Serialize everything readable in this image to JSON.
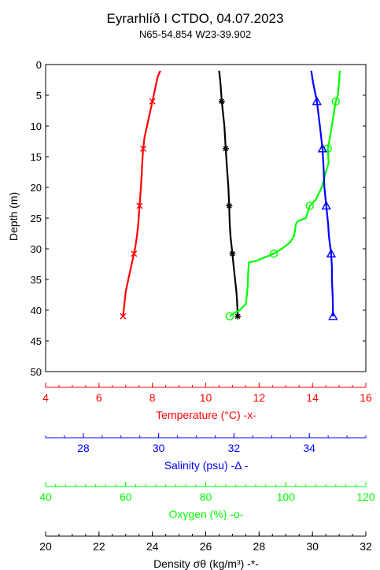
{
  "chart_data": {
    "type": "line",
    "title": "Eyrarhlíð I CTDO, 04.07.2023",
    "subtitle": "N65-54.854   W23-39.902",
    "ylabel": "Depth (m)",
    "ylim": [
      0,
      50
    ],
    "y_ticks": [
      "0",
      "5",
      "10",
      "15",
      "20",
      "25",
      "30",
      "35",
      "40",
      "45",
      "50"
    ],
    "grid": false,
    "axes": [
      {
        "key": "temperature",
        "label": "Temperature (°C)   -x-",
        "color": "#ff0000",
        "range": [
          4,
          16
        ],
        "ticks": [
          4,
          6,
          8,
          10,
          12,
          14,
          16
        ],
        "tick_labels": [
          "4",
          "6",
          "8",
          "10",
          "12",
          "14",
          "16"
        ],
        "minor_step": 0.5
      },
      {
        "key": "salinity",
        "label": "Salinity (psu)   -Δ -",
        "color": "#0000ff",
        "range": [
          27,
          35.5
        ],
        "ticks": [
          28,
          30,
          32,
          34
        ],
        "tick_labels": [
          "28",
          "30",
          "32",
          "34"
        ],
        "minor_step": 0.5
      },
      {
        "key": "oxygen",
        "label": "Oxygen (%)   -o-",
        "color": "#00ff00",
        "range": [
          40,
          120
        ],
        "ticks": [
          40,
          60,
          80,
          100,
          120
        ],
        "tick_labels": [
          "40",
          "60",
          "80",
          "100",
          "120"
        ],
        "minor_step": 2.5
      },
      {
        "key": "density",
        "label": "Density σθ (kg/m³)   -*-",
        "color": "#000000",
        "range": [
          20,
          32
        ],
        "ticks": [
          20,
          22,
          24,
          26,
          28,
          30,
          32
        ],
        "tick_labels": [
          "20",
          "22",
          "24",
          "26",
          "28",
          "30",
          "32"
        ],
        "minor_step": 0.5
      }
    ],
    "series": [
      {
        "name": "Temperature",
        "axis": "temperature",
        "color": "#ff0000",
        "marker": "x",
        "depth": [
          1,
          2,
          4,
          6,
          8,
          10,
          12,
          14,
          16,
          18,
          20,
          23,
          26,
          28,
          30,
          31,
          33,
          35,
          37,
          39,
          41
        ],
        "values": [
          8.3,
          8.2,
          8.1,
          8.0,
          7.9,
          7.8,
          7.7,
          7.65,
          7.62,
          7.6,
          7.57,
          7.52,
          7.47,
          7.42,
          7.35,
          7.3,
          7.2,
          7.1,
          7.0,
          6.95,
          6.9
        ],
        "markers_at": [
          6,
          13.7,
          23,
          30.8,
          41
        ]
      },
      {
        "name": "Density",
        "axis": "density",
        "color": "#000000",
        "marker": "*",
        "depth": [
          1,
          3,
          6,
          10,
          13.7,
          17,
          20,
          23,
          26,
          28,
          30.8,
          33,
          35,
          37,
          39,
          41
        ],
        "values": [
          26.5,
          26.55,
          26.6,
          26.7,
          26.75,
          26.8,
          26.85,
          26.88,
          26.9,
          26.93,
          27.0,
          27.05,
          27.1,
          27.15,
          27.18,
          27.2
        ],
        "markers_at": [
          6,
          13.7,
          23,
          30.8,
          41
        ]
      },
      {
        "name": "Oxygen",
        "axis": "oxygen",
        "color": "#00ff00",
        "marker": "o",
        "depth": [
          1,
          3,
          5,
          6,
          8,
          10,
          12,
          13.7,
          16,
          18,
          20,
          22,
          23,
          24,
          25,
          25.5,
          26,
          27,
          28,
          29,
          30,
          30.8,
          32,
          32.2,
          34,
          36,
          38,
          39,
          40,
          40.5,
          41
        ],
        "values": [
          113.5,
          113.3,
          113.0,
          112.5,
          112.0,
          111.5,
          111.0,
          110.5,
          110.7,
          109.8,
          109.0,
          107.5,
          106.0,
          105.5,
          105.0,
          103.0,
          102.5,
          102.3,
          102.0,
          101.0,
          99.0,
          97.0,
          92.5,
          90.8,
          90.6,
          90.5,
          90.2,
          90.0,
          88.5,
          87.0,
          86.0
        ],
        "markers_at": [
          {
            "depth": 6,
            "value": 112.5
          },
          {
            "depth": 13.7,
            "value": 110.5
          },
          {
            "depth": 23,
            "value": 106.0
          },
          {
            "depth": 30.8,
            "value": 97.0
          },
          {
            "depth": 41,
            "value": 86.0
          }
        ]
      },
      {
        "name": "Salinity",
        "axis": "salinity",
        "color": "#0000ff",
        "marker": "triangle",
        "depth": [
          1,
          3,
          6,
          10,
          13.7,
          17,
          20,
          23,
          26,
          28,
          30.8,
          33,
          35,
          38,
          41
        ],
        "values": [
          34.05,
          34.1,
          34.2,
          34.28,
          34.35,
          34.38,
          34.4,
          34.45,
          34.5,
          34.52,
          34.58,
          34.6,
          34.6,
          34.62,
          34.63
        ],
        "markers_at": [
          6,
          13.7,
          23,
          30.8,
          41
        ]
      }
    ]
  }
}
